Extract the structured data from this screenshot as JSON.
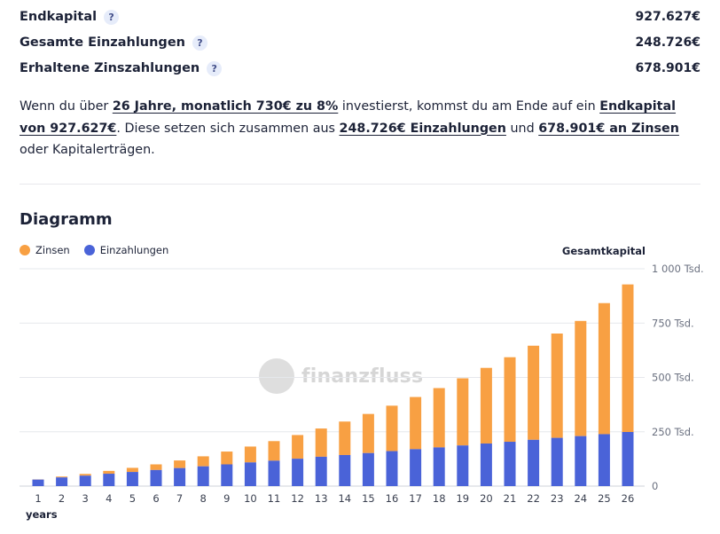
{
  "summary": [
    {
      "label": "Endkapital",
      "value": "927.627€"
    },
    {
      "label": "Gesamte Einzahlungen",
      "value": "248.726€"
    },
    {
      "label": "Erhaltene Zinszahlungen",
      "value": "678.901€"
    }
  ],
  "help_icon": "?",
  "text": {
    "p1": "Wenn du über ",
    "b1": "26 Jahre, monatlich 730€ zu 8%",
    "p2": " investierst, kommst du am Ende auf ein ",
    "b2": "Endkapital von 927.627€",
    "p3": ". Diese setzen sich zusammen aus ",
    "b3": "248.726€ Einzahlungen",
    "p4": " und ",
    "b4": "678.901€ an Zinsen",
    "p5": " oder Kapitalerträgen."
  },
  "section_title": "Diagramm",
  "legend": [
    {
      "label": "Zinsen",
      "color": "#f8a043"
    },
    {
      "label": "Einzahlungen",
      "color": "#4a63d8"
    }
  ],
  "watermark": "finanzfluss",
  "chart_data": {
    "type": "bar",
    "stacked": true,
    "categories": [
      "1",
      "2",
      "3",
      "4",
      "5",
      "6",
      "7",
      "8",
      "9",
      "10",
      "11",
      "12",
      "13",
      "14",
      "15",
      "16",
      "17",
      "18",
      "19",
      "20",
      "21",
      "22",
      "23",
      "24",
      "25",
      "26"
    ],
    "series": [
      {
        "name": "Einzahlungen",
        "color": "#4a63d8",
        "values": [
          30,
          40,
          48,
          57,
          65,
          74,
          83,
          91,
          100,
          109,
          117,
          126,
          135,
          143,
          152,
          161,
          170,
          178,
          187,
          196,
          204,
          213,
          222,
          230,
          239,
          249
        ]
      },
      {
        "name": "Zinsen",
        "color": "#f8a043",
        "values": [
          1,
          4,
          8,
          13,
          19,
          26,
          35,
          46,
          59,
          73,
          90,
          109,
          130,
          154,
          180,
          209,
          240,
          273,
          309,
          348,
          389,
          433,
          480,
          530,
          603,
          679
        ]
      }
    ],
    "ylabel": "Gesamtkapital",
    "xlabel": "years",
    "ylim": [
      0,
      1000000
    ],
    "y_ticks": [
      "0",
      "250 Tsd.",
      "500 Tsd.",
      "750 Tsd.",
      "1 000 Tsd."
    ],
    "grid": true
  }
}
